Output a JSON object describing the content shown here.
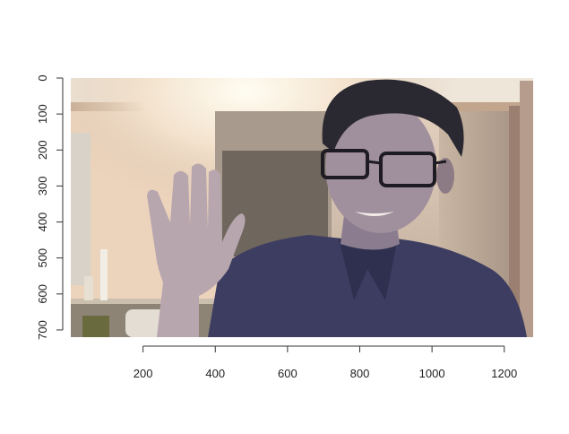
{
  "chart_data": {
    "type": "raster-image",
    "title": "",
    "xlabel": "",
    "ylabel": "",
    "xlim": [
      0,
      1280
    ],
    "ylim": [
      720,
      0
    ],
    "x_ticks": [
      200,
      400,
      600,
      800,
      1000,
      1200
    ],
    "y_ticks": [
      0,
      100,
      200,
      300,
      400,
      500,
      600,
      700
    ],
    "grid": false,
    "image_content": "webcam photo of a person with glasses waving in a dimly lit room"
  }
}
